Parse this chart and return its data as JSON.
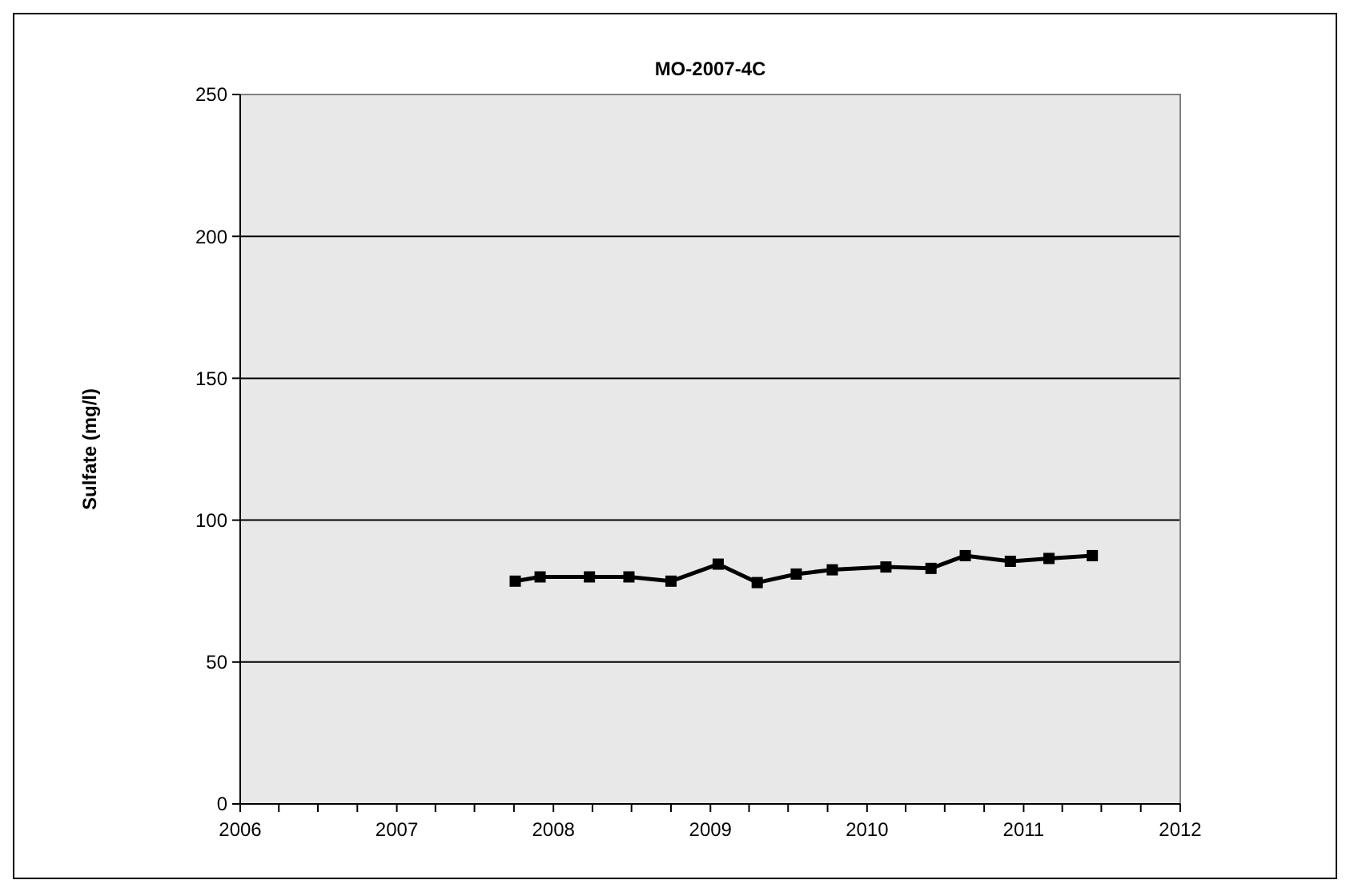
{
  "chart_data": {
    "type": "line",
    "title": "MO-2007-4C",
    "ylabel": "Sulfate (mg/l)",
    "x": [
      "2007-10-04",
      "2007-12-01",
      "2008-03-25",
      "2008-06-25",
      "2008-10-01",
      "2009-01-19",
      "2009-04-20",
      "2009-07-20",
      "2009-10-12",
      "2010-02-14",
      "2010-05-30",
      "2010-08-18",
      "2010-12-01",
      "2011-03-01",
      "2011-06-10"
    ],
    "series": [
      {
        "color": "#000000",
        "values": [
          78.5,
          80,
          80,
          80,
          78.5,
          84.5,
          78,
          81,
          82.5,
          83.5,
          83,
          87.5,
          85.5,
          86.5,
          87.5
        ]
      }
    ],
    "marker": "square",
    "line_style": "solid",
    "grid": "y",
    "xlim": [
      "2006",
      "2012"
    ],
    "xticks": [
      {
        "value": "2006",
        "label": "2006"
      },
      {
        "value": "2006-04",
        "label": null
      },
      {
        "value": "2006-07",
        "label": null
      },
      {
        "value": "2006-10",
        "label": null
      },
      {
        "value": "2007",
        "label": "2007"
      },
      {
        "value": "2007-04",
        "label": null
      },
      {
        "value": "2007-07",
        "label": null
      },
      {
        "value": "2007-10",
        "label": null
      },
      {
        "value": "2008",
        "label": "2008"
      },
      {
        "value": "2008-04",
        "label": null
      },
      {
        "value": "2008-07",
        "label": null
      },
      {
        "value": "2008-10",
        "label": null
      },
      {
        "value": "2009",
        "label": "2009"
      },
      {
        "value": "2009-04",
        "label": null
      },
      {
        "value": "2009-07",
        "label": null
      },
      {
        "value": "2009-10",
        "label": null
      },
      {
        "value": "2010",
        "label": "2010"
      },
      {
        "value": "2010-04",
        "label": null
      },
      {
        "value": "2010-07",
        "label": null
      },
      {
        "value": "2010-10",
        "label": null
      },
      {
        "value": "2011",
        "label": "2011"
      },
      {
        "value": "2011-04",
        "label": null
      },
      {
        "value": "2011-07",
        "label": null
      },
      {
        "value": "2011-10",
        "label": null
      },
      {
        "value": "2012",
        "label": "2012"
      }
    ],
    "ylim": [
      0,
      250
    ],
    "yticks": [
      0,
      50,
      100,
      150,
      200,
      250
    ]
  }
}
